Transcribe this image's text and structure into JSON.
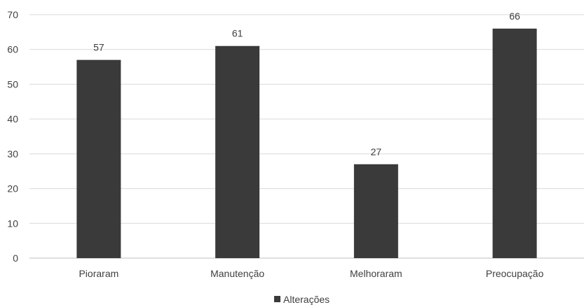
{
  "chart_data": {
    "type": "bar",
    "categories": [
      "Pioraram",
      "Manutenção",
      "Melhoraram",
      "Preocupação"
    ],
    "series": [
      {
        "name": "Alterações",
        "values": [
          57,
          61,
          27,
          66
        ],
        "color": "#3a3a3a"
      }
    ],
    "ylim": [
      0,
      70
    ],
    "yticks": [
      0,
      10,
      20,
      30,
      40,
      50,
      60,
      70
    ],
    "grid": true,
    "gridColor": "#d9d9d9",
    "axisColor": "#bfbfbf",
    "legend": "bottom",
    "data_labels": true
  }
}
